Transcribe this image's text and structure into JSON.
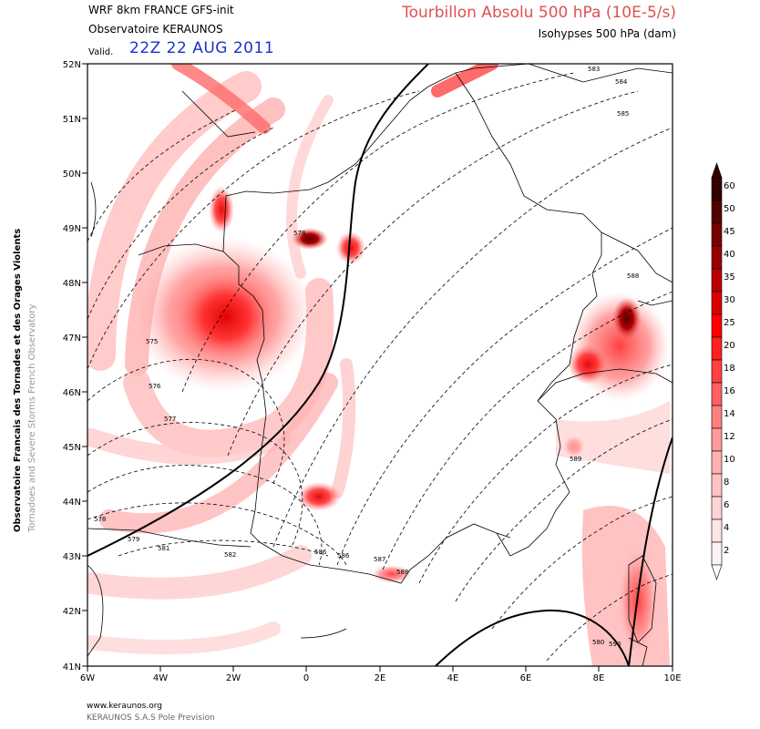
{
  "header": {
    "model_run": "WRF 8km FRANCE  GFS-init",
    "observatory": "Observatoire KERAUNOS",
    "valid_label": "Valid.",
    "valid_datetime": "22Z 22 AUG 2011",
    "title": "Tourbillon Absolu 500 hPa (10E-5/s)",
    "subtitle": "Isohypses 500 hPa (dam)"
  },
  "side_credit": {
    "line1": "Observatoire Francais des Tornades et des Orages Violents",
    "line2": "Tornadoes and Severe Storms French Observatory"
  },
  "footer": {
    "website": "www.keraunos.org",
    "company": "KERAUNOS S.A.S Pole Prevision"
  },
  "map": {
    "lat_labels": [
      "52N",
      "51N",
      "50N",
      "49N",
      "48N",
      "47N",
      "46N",
      "45N",
      "44N",
      "43N",
      "42N",
      "41N"
    ],
    "lon_labels": [
      "6W",
      "4W",
      "2W",
      "0",
      "2E",
      "4E",
      "6E",
      "8E",
      "10E"
    ],
    "contour_labels": [
      "575",
      "576",
      "577",
      "578",
      "578",
      "579",
      "580",
      "581",
      "582",
      "583",
      "584",
      "585",
      "586",
      "586",
      "587",
      "588",
      "588",
      "589",
      "590"
    ]
  },
  "colorbar": {
    "labels": [
      "60",
      "50",
      "45",
      "40",
      "35",
      "30",
      "25",
      "20",
      "18",
      "16",
      "14",
      "12",
      "10",
      "8",
      "6",
      "4",
      "2"
    ],
    "colors": [
      "#330000",
      "#550000",
      "#770000",
      "#990000",
      "#bb0000",
      "#dd0000",
      "#ff0000",
      "#ff2020",
      "#ff4040",
      "#ff6060",
      "#ff7f7f",
      "#ff9a9a",
      "#ffb0b0",
      "#ffc3c3",
      "#ffd5d5",
      "#ffe5e5",
      "#fff2f2"
    ]
  }
}
